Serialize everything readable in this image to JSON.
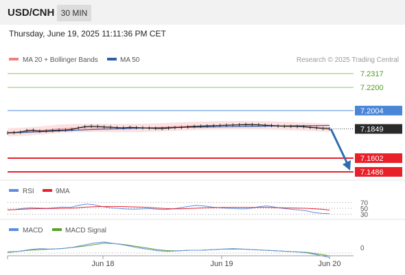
{
  "header": {
    "symbol": "USD/CNH",
    "timeframe": "30 MIN",
    "datetime": "Thursday, June 19, 2025 11:11:36 PM CET"
  },
  "colors": {
    "price_line": "#222222",
    "bollinger": "#f08080",
    "ma50": "#2e5fa6",
    "level_green": "#8cc06a",
    "level_blue": "#4a86d8",
    "level_red": "#e8202a",
    "current_tag": "#2a2a2a",
    "arrow": "#2e6cb0",
    "rsi": "#5b8de0",
    "rsi_9ma": "#e8202a",
    "macd": "#5b8de0",
    "macd_signal": "#5aa02c"
  },
  "main_legend": {
    "ma20": "MA 20 + Bollinger Bands",
    "ma50": "MA 50",
    "source": "Research © 2025 Trading Central"
  },
  "rsi_legend": {
    "rsi": "RSI",
    "ma": "9MA"
  },
  "macd_legend": {
    "macd": "MACD",
    "signal": "MACD Signal"
  },
  "chart_data": {
    "type": "line",
    "title": "USD/CNH",
    "price_range": [
      7.1486,
      7.2317
    ],
    "levels": [
      {
        "value": 7.2317,
        "label": "7.2317",
        "kind": "resistance"
      },
      {
        "value": 7.22,
        "label": "7.2200",
        "kind": "resistance"
      },
      {
        "value": 7.2004,
        "label": "7.2004",
        "kind": "pivot"
      },
      {
        "value": 7.1849,
        "label": "7.1849",
        "kind": "current"
      },
      {
        "value": 7.1602,
        "label": "7.1602",
        "kind": "support"
      },
      {
        "value": 7.1486,
        "label": "7.1486",
        "kind": "support"
      }
    ],
    "x_ticks": [
      "Jun 18",
      "Jun 19",
      "Jun 20"
    ],
    "series": [
      {
        "name": "Price",
        "values": [
          7.1815,
          7.1818,
          7.1822,
          7.1835,
          7.1838,
          7.183,
          7.1832,
          7.1836,
          7.1838,
          7.184,
          7.1845,
          7.1858,
          7.1868,
          7.1872,
          7.187,
          7.1866,
          7.1864,
          7.186,
          7.1858,
          7.1862,
          7.186,
          7.1858,
          7.1856,
          7.1854,
          7.1852,
          7.1856,
          7.186,
          7.1862,
          7.1866,
          7.187,
          7.1872,
          7.1874,
          7.1876,
          7.1878,
          7.188,
          7.1882,
          7.1884,
          7.1886,
          7.1885,
          7.1884,
          7.188,
          7.1878,
          7.1874,
          7.1872,
          7.1871,
          7.187,
          7.1868,
          7.1862,
          7.1858,
          7.1852,
          7.1849
        ]
      },
      {
        "name": "MA 50",
        "values": [
          7.1815,
          7.182,
          7.1826,
          7.1832,
          7.1838,
          7.1844,
          7.1848,
          7.1852,
          7.1856,
          7.1859,
          7.1862,
          7.1864,
          7.1866,
          7.1868,
          7.187,
          7.1872,
          7.1874,
          7.1876,
          7.1877,
          7.1878
        ]
      },
      {
        "name": "MA 20",
        "values": [
          7.182,
          7.1826,
          7.1836,
          7.185,
          7.1856,
          7.1858,
          7.1858,
          7.1857,
          7.1858,
          7.1862,
          7.1868,
          7.1874,
          7.1878,
          7.188,
          7.1882,
          7.188,
          7.1876,
          7.1872,
          7.1866,
          7.1858
        ]
      }
    ],
    "rsi": {
      "levels": [
        {
          "value": 70,
          "label": "70"
        },
        {
          "value": 50,
          "label": "50"
        },
        {
          "value": 30,
          "label": "30"
        }
      ],
      "values": [
        45,
        46,
        50,
        52,
        51,
        50,
        52,
        54,
        53,
        60,
        64,
        62,
        56,
        52,
        50,
        48,
        47,
        48,
        49,
        47,
        46,
        48,
        52,
        56,
        60,
        58,
        54,
        52,
        50,
        49,
        48,
        50,
        55,
        58,
        54,
        50,
        47,
        45,
        42,
        36,
        33,
        32
      ]
    },
    "macd": {
      "levels": [
        {
          "value": 0,
          "label": "0"
        }
      ],
      "macd_values": [
        0.2,
        0.3,
        0.6,
        0.8,
        0.7,
        0.8,
        1.0,
        1.4,
        1.8,
        2.0,
        1.7,
        1.4,
        1.0,
        0.7,
        0.4,
        0.3,
        0.4,
        0.5,
        0.5,
        0.6,
        0.7,
        0.8,
        0.7,
        0.6,
        0.5,
        0.4,
        0.3,
        0.2,
        0.0,
        -0.4,
        -0.8
      ],
      "signal_values": [
        0.1,
        0.3,
        0.5,
        0.6,
        0.7,
        0.8,
        1.0,
        1.2,
        1.5,
        1.8,
        1.7,
        1.5,
        1.2,
        0.9,
        0.6,
        0.4,
        0.4,
        0.5,
        0.5,
        0.6,
        0.7,
        0.7,
        0.7,
        0.6,
        0.5,
        0.4,
        0.3,
        0.2,
        0.1,
        -0.2,
        -0.5
      ]
    }
  }
}
